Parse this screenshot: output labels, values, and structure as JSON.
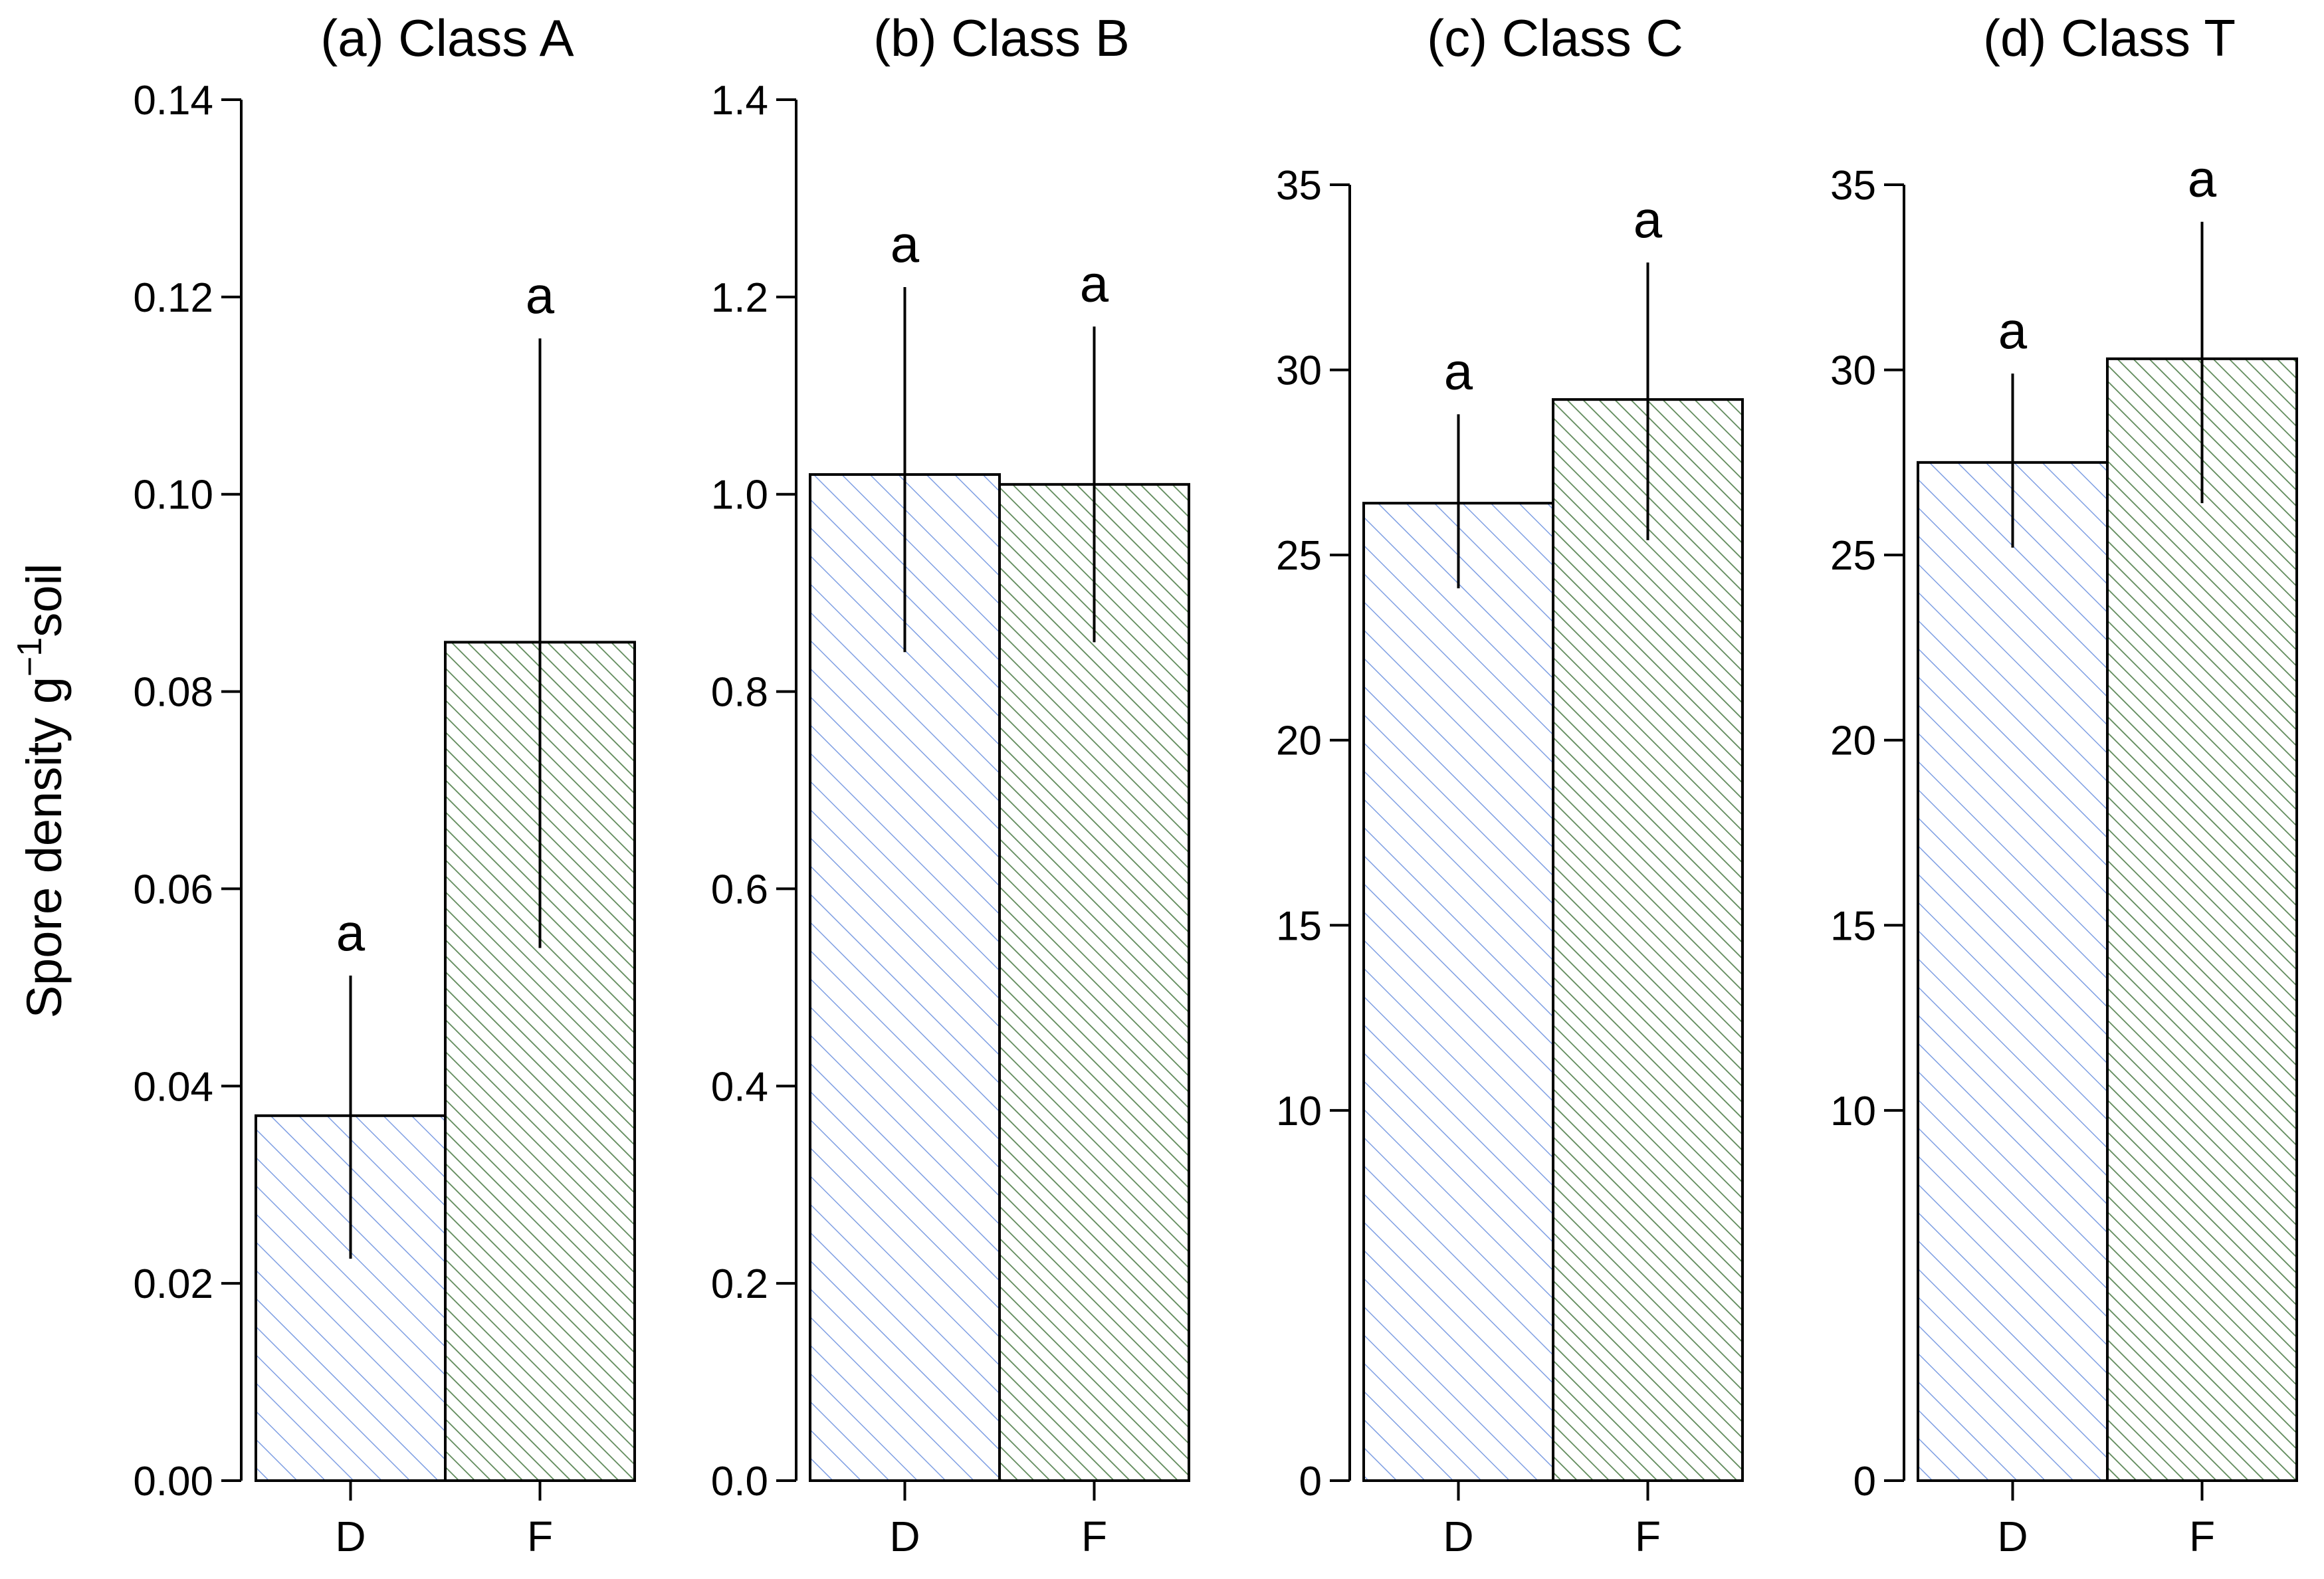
{
  "figure": {
    "ylabel_main": "Spore density g",
    "ylabel_sup": "−1",
    "ylabel_tail": "soil"
  },
  "colors": {
    "D_hatch": "#7f9fe3",
    "F_hatch": "#5f8a5a",
    "axis": "#000000",
    "background": "#ffffff"
  },
  "chart_data": [
    {
      "type": "bar",
      "title": "(a) Class A",
      "categories": [
        "D",
        "F"
      ],
      "values": [
        0.037,
        0.085
      ],
      "error_low": [
        0.0225,
        0.054
      ],
      "error_high": [
        0.0512,
        0.1158
      ],
      "letters": [
        "a",
        "a"
      ],
      "ylim": [
        0,
        0.14
      ],
      "ticks": [
        0.0,
        0.02,
        0.04,
        0.06,
        0.08,
        0.1,
        0.12,
        0.14
      ],
      "tick_labels": [
        "0.00",
        "0.02",
        "0.04",
        "0.06",
        "0.08",
        "0.10",
        "0.12",
        "0.14"
      ],
      "xlabel": "",
      "ylabel": "Spore density g−1soil"
    },
    {
      "type": "bar",
      "title": "(b) Class B",
      "categories": [
        "D",
        "F"
      ],
      "values": [
        1.02,
        1.01
      ],
      "error_low": [
        0.84,
        0.85
      ],
      "error_high": [
        1.21,
        1.17
      ],
      "letters": [
        "a",
        "a"
      ],
      "ylim": [
        0,
        1.4
      ],
      "ticks": [
        0.0,
        0.2,
        0.4,
        0.6,
        0.8,
        1.0,
        1.2,
        1.4
      ],
      "tick_labels": [
        "0.0",
        "0.2",
        "0.4",
        "0.6",
        "0.8",
        "1.0",
        "1.2",
        "1.4"
      ],
      "xlabel": "",
      "ylabel": ""
    },
    {
      "type": "bar",
      "title": "(c) Class C",
      "categories": [
        "D",
        "F"
      ],
      "values": [
        26.4,
        29.2
      ],
      "error_low": [
        24.1,
        25.4
      ],
      "error_high": [
        28.8,
        32.9
      ],
      "letters": [
        "a",
        "a"
      ],
      "ylim": [
        0,
        35
      ],
      "ticks": [
        0,
        10,
        15,
        20,
        25,
        30,
        35
      ],
      "tick_labels": [
        "0",
        "10",
        "15",
        "20",
        "25",
        "30",
        "35"
      ],
      "xlabel": "",
      "ylabel": ""
    },
    {
      "type": "bar",
      "title": "(d) Class T",
      "categories": [
        "D",
        "F"
      ],
      "values": [
        27.5,
        30.3
      ],
      "error_low": [
        25.2,
        26.4
      ],
      "error_high": [
        29.9,
        34.0
      ],
      "letters": [
        "a",
        "a"
      ],
      "ylim": [
        0,
        35
      ],
      "ticks": [
        0,
        10,
        15,
        20,
        25,
        30,
        35
      ],
      "tick_labels": [
        "0",
        "10",
        "15",
        "20",
        "25",
        "30",
        "35"
      ],
      "xlabel": "",
      "ylabel": ""
    }
  ]
}
